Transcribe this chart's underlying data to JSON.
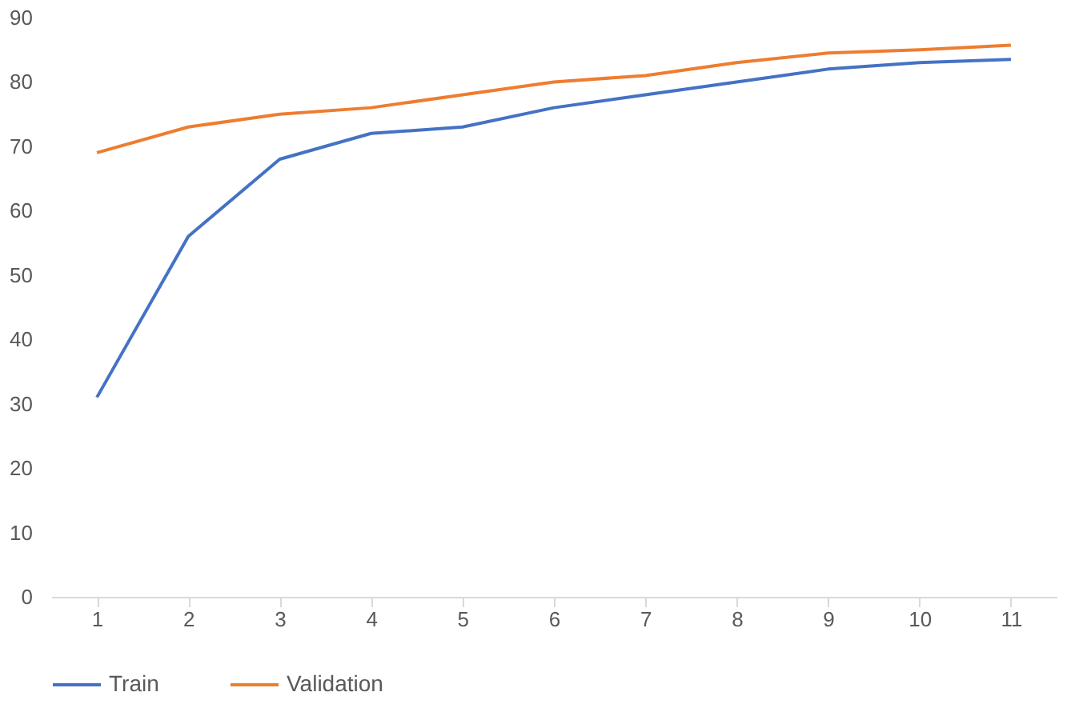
{
  "chart_data": {
    "type": "line",
    "categories": [
      "1",
      "2",
      "3",
      "4",
      "5",
      "6",
      "7",
      "8",
      "9",
      "10",
      "11"
    ],
    "series": [
      {
        "name": "Train",
        "color": "#4472c4",
        "values": [
          31,
          56,
          68,
          72,
          73,
          76,
          78,
          80,
          82,
          83,
          83.5
        ]
      },
      {
        "name": "Validation",
        "color": "#ed7d31",
        "values": [
          69,
          73,
          75,
          76,
          78,
          80,
          81,
          83,
          84.5,
          85,
          85.7
        ]
      }
    ],
    "ylim": [
      0,
      90
    ],
    "yticks": [
      0,
      10,
      20,
      30,
      40,
      50,
      60,
      70,
      80,
      90
    ],
    "grid": false,
    "legend": "bottom",
    "marker": "none",
    "line_style": "solid"
  }
}
